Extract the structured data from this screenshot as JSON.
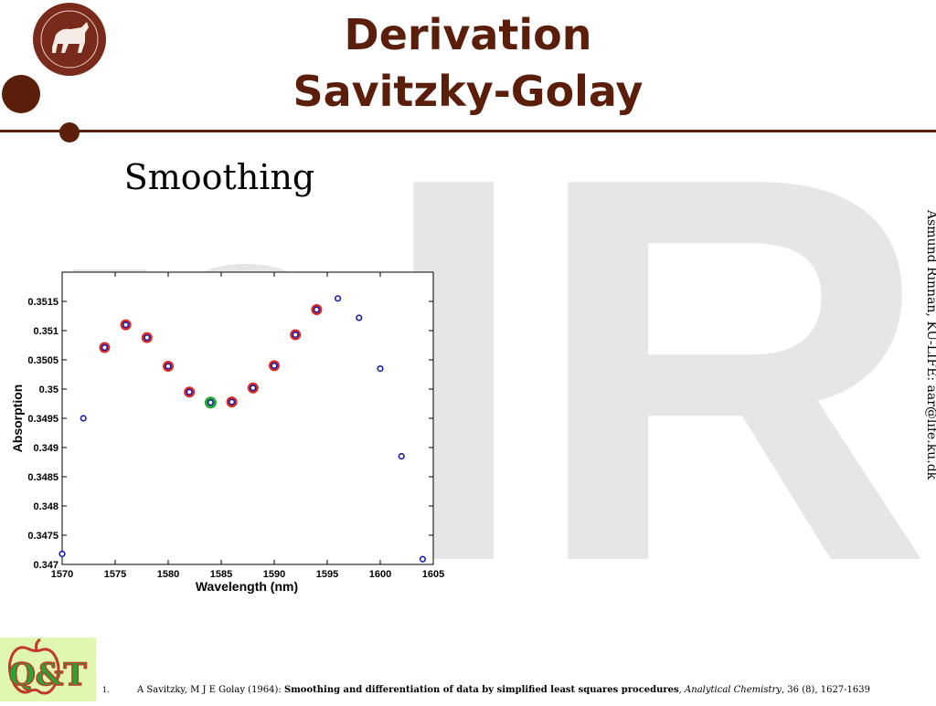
{
  "slide": {
    "title_line1": "Derivation",
    "title_line2": "Savitzky-Golay",
    "section_label": "Smoothing",
    "sidebar_text": "Åsmund Rinnan, KU-LIFE: aar@life.ku.dk",
    "watermark_text": "nIR",
    "logo_text": "Q&T",
    "accent_color": "#5a1e0a"
  },
  "reference": {
    "number": "1.",
    "authors": "A Savitzky, M J E Golay (1964):",
    "title": "Smoothing and differentiation of data by simplified least squares procedures",
    "journal": "Analytical Chemistry",
    "details": ", 36 (8), 1627-1639"
  },
  "chart_data": {
    "type": "scatter",
    "xlabel": "Wavelength (nm)",
    "ylabel": "Absorption",
    "xlim": [
      1570,
      1605
    ],
    "ylim": [
      0.347,
      0.352
    ],
    "xticks": [
      1570,
      1575,
      1580,
      1585,
      1590,
      1595,
      1600,
      1605
    ],
    "yticks": [
      0.347,
      0.3475,
      0.348,
      0.3485,
      0.349,
      0.3495,
      0.35,
      0.3505,
      0.351,
      0.3515
    ],
    "grid": false,
    "points": [
      {
        "x": 1570,
        "y": 0.34718,
        "mark": "none"
      },
      {
        "x": 1572,
        "y": 0.3495,
        "mark": "none"
      },
      {
        "x": 1574,
        "y": 0.35071,
        "mark": "window"
      },
      {
        "x": 1576,
        "y": 0.3511,
        "mark": "window"
      },
      {
        "x": 1578,
        "y": 0.35088,
        "mark": "window"
      },
      {
        "x": 1580,
        "y": 0.35039,
        "mark": "window"
      },
      {
        "x": 1582,
        "y": 0.34995,
        "mark": "window"
      },
      {
        "x": 1584,
        "y": 0.34977,
        "mark": "center"
      },
      {
        "x": 1586,
        "y": 0.34978,
        "mark": "window"
      },
      {
        "x": 1588,
        "y": 0.35002,
        "mark": "window"
      },
      {
        "x": 1590,
        "y": 0.3504,
        "mark": "window"
      },
      {
        "x": 1592,
        "y": 0.35093,
        "mark": "window"
      },
      {
        "x": 1594,
        "y": 0.35136,
        "mark": "window"
      },
      {
        "x": 1596,
        "y": 0.35155,
        "mark": "none"
      },
      {
        "x": 1598,
        "y": 0.35122,
        "mark": "none"
      },
      {
        "x": 1600,
        "y": 0.35035,
        "mark": "none"
      },
      {
        "x": 1602,
        "y": 0.34885,
        "mark": "none"
      },
      {
        "x": 1604,
        "y": 0.34709,
        "mark": "none"
      }
    ],
    "colors": {
      "points": "#1a1aa8",
      "window": "#d42a2a",
      "center": "#22a832"
    }
  }
}
